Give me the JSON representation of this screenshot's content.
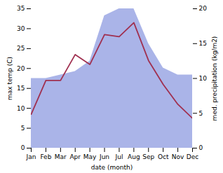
{
  "chart_data": {
    "type": "line",
    "xlabel": "date (month)",
    "ylabel": "max temp (C)",
    "y2label": "med. precipitation (kg/m2)",
    "categories": [
      "Jan",
      "Feb",
      "Mar",
      "Apr",
      "May",
      "Jun",
      "Jul",
      "Aug",
      "Sep",
      "Oct",
      "Nov",
      "Dec"
    ],
    "series": [
      {
        "type": "area",
        "axis": "y2",
        "color": "#aab4e8",
        "values": [
          10.0,
          10.0,
          10.5,
          11.0,
          12.5,
          19.0,
          20.0,
          20.0,
          15.0,
          11.5,
          10.5,
          10.5
        ]
      },
      {
        "type": "line",
        "axis": "y",
        "color": "#a03050",
        "values": [
          8.5,
          17.0,
          17.0,
          23.5,
          21.0,
          28.5,
          28.0,
          31.5,
          22.0,
          16.0,
          11.0,
          7.5
        ]
      }
    ],
    "ylim": [
      0,
      35
    ],
    "yticks": [
      0,
      5,
      10,
      15,
      20,
      25,
      30,
      35
    ],
    "y2lim": [
      0,
      20
    ],
    "y2ticks": [
      0,
      5,
      10,
      15,
      20
    ],
    "grid": false
  }
}
